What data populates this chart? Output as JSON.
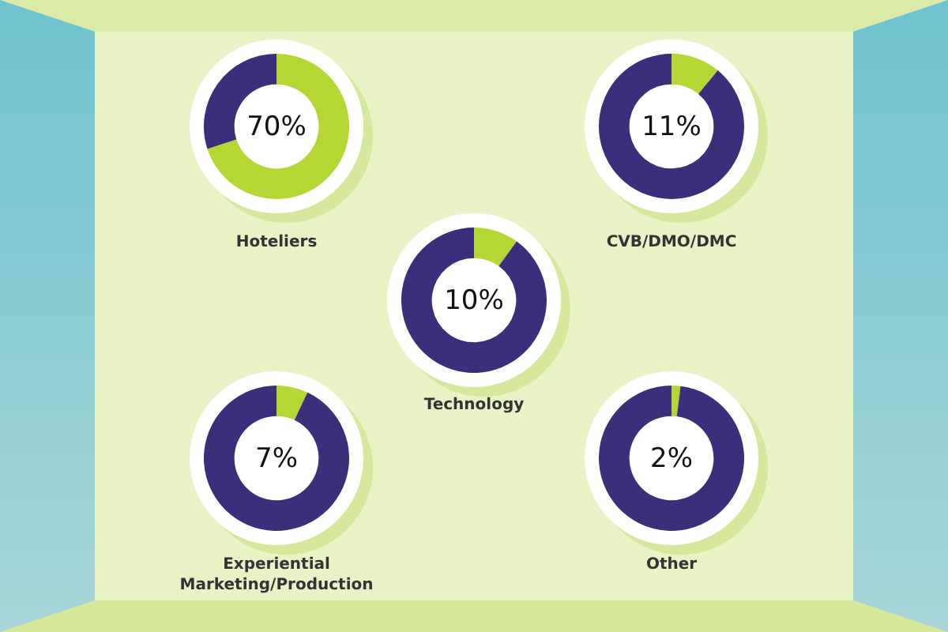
{
  "chart_data": [
    {
      "type": "donut",
      "title": "Hoteliers",
      "categories": [
        null,
        null
      ],
      "values": [
        70,
        30
      ],
      "colors": [
        "#b5d733",
        "#3b2e7a"
      ],
      "annotations": [
        "70%"
      ]
    },
    {
      "type": "donut",
      "title": "CVB/DMO/DMC",
      "categories": [
        null,
        null
      ],
      "values": [
        11,
        89
      ],
      "colors": [
        "#b5d733",
        "#3b2e7a"
      ],
      "annotations": [
        "11%"
      ]
    },
    {
      "type": "donut",
      "title": "Technology",
      "categories": [
        null,
        null
      ],
      "values": [
        10,
        90
      ],
      "colors": [
        "#b5d733",
        "#3b2e7a"
      ],
      "annotations": [
        "10%"
      ]
    },
    {
      "type": "donut",
      "title": "Experiential Marketing/Production",
      "categories": [
        null,
        null
      ],
      "values": [
        7,
        93
      ],
      "colors": [
        "#b5d733",
        "#3b2e7a"
      ],
      "annotations": [
        "7%"
      ]
    },
    {
      "type": "donut",
      "title": "Other",
      "categories": [
        null,
        null
      ],
      "values": [
        2,
        98
      ],
      "colors": [
        "#b5d733",
        "#3b2e7a"
      ],
      "annotations": [
        "2%"
      ]
    }
  ]
}
